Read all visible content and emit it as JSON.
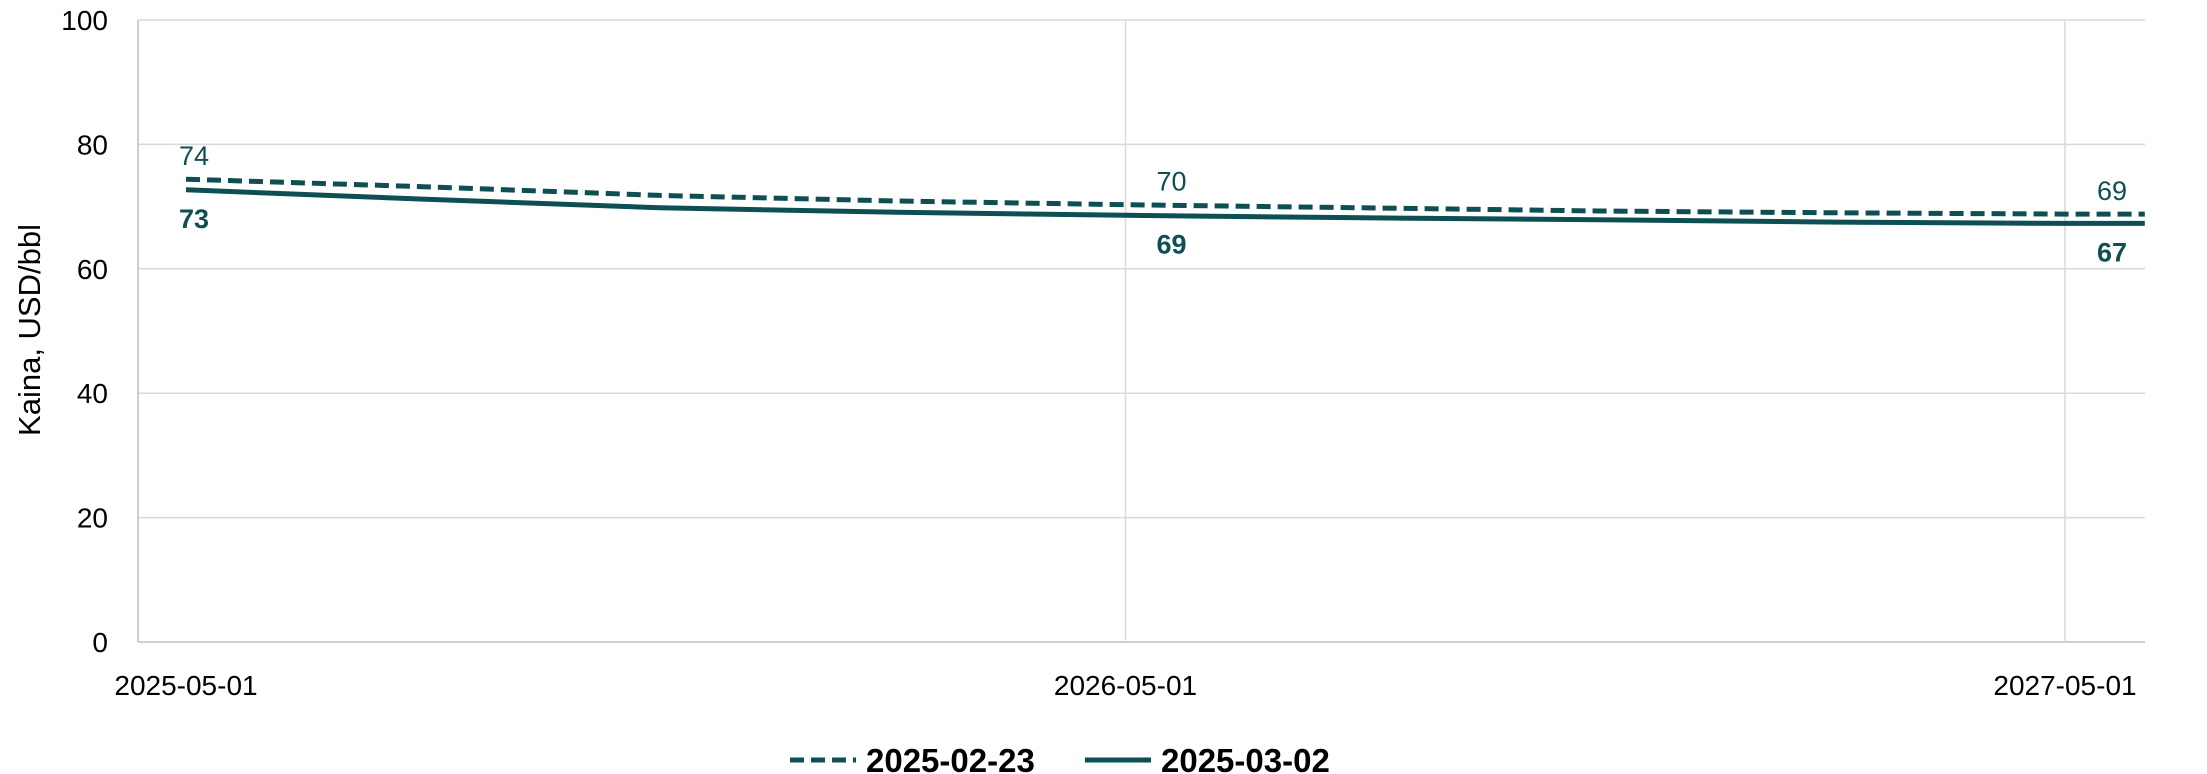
{
  "chart_data": {
    "type": "line",
    "title": "",
    "xlabel": "",
    "ylabel": "Kaina, USD/bbl",
    "ylim": [
      0,
      100
    ],
    "yticks": [
      "0",
      "20",
      "40",
      "60",
      "80",
      "100"
    ],
    "xlim": [
      "2025-05-01",
      "2027-05-01"
    ],
    "xticks": [
      "2025-05-01",
      "2026-05-01",
      "2027-05-01"
    ],
    "grid": true,
    "legend_position": "bottom",
    "colors": {
      "line": "#0d4f52",
      "grid": "#d9d9d9",
      "axis": "#bfbfbf"
    },
    "series": [
      {
        "name": "2025-02-23",
        "style": "dashed",
        "points": [
          {
            "x": "2025-05-01",
            "y": 74.4
          },
          {
            "x": "2025-08-01",
            "y": 73.2
          },
          {
            "x": "2025-11-01",
            "y": 71.8
          },
          {
            "x": "2026-02-01",
            "y": 70.9
          },
          {
            "x": "2026-05-01",
            "y": 70.3
          },
          {
            "x": "2026-08-01",
            "y": 69.8
          },
          {
            "x": "2026-11-01",
            "y": 69.3
          },
          {
            "x": "2027-02-01",
            "y": 69.0
          },
          {
            "x": "2027-05-01",
            "y": 68.8
          },
          {
            "x": "2027-06-01",
            "y": 68.8
          }
        ],
        "labels": [
          {
            "x": "2025-05-01",
            "text": "74"
          },
          {
            "x": "2026-05-01",
            "text": "70"
          },
          {
            "x": "2027-05-01",
            "text": "69"
          }
        ]
      },
      {
        "name": "2025-03-02",
        "style": "solid",
        "points": [
          {
            "x": "2025-05-01",
            "y": 72.7
          },
          {
            "x": "2025-08-01",
            "y": 71.2
          },
          {
            "x": "2025-11-01",
            "y": 69.8
          },
          {
            "x": "2026-02-01",
            "y": 69.1
          },
          {
            "x": "2026-05-01",
            "y": 68.6
          },
          {
            "x": "2026-08-01",
            "y": 68.2
          },
          {
            "x": "2026-11-01",
            "y": 67.9
          },
          {
            "x": "2027-02-01",
            "y": 67.5
          },
          {
            "x": "2027-05-01",
            "y": 67.3
          },
          {
            "x": "2027-06-01",
            "y": 67.3
          }
        ],
        "labels": [
          {
            "x": "2025-05-01",
            "text": "73"
          },
          {
            "x": "2026-05-01",
            "text": "69"
          },
          {
            "x": "2027-05-01",
            "text": "67"
          }
        ]
      }
    ]
  }
}
